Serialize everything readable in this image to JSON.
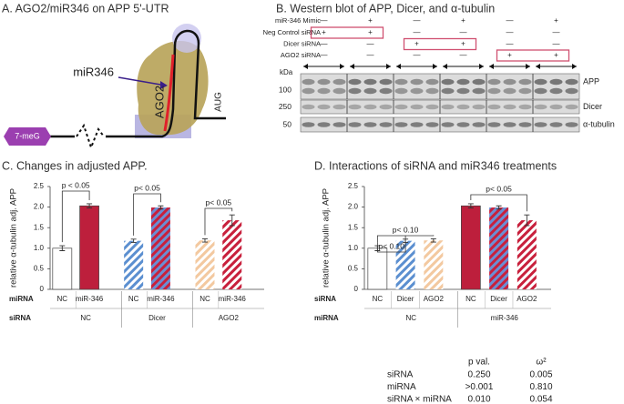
{
  "panel_a": {
    "title": "A. AGO2/miR346 on APP 5'-UTR",
    "mirna": "miR346",
    "ago2": "AGO2",
    "aug": "AUG",
    "cap": "7-meG"
  },
  "panel_b": {
    "title": "B. Western blot of APP, Dicer, and α-tubulin",
    "treatments": [
      {
        "label": "miR-346 Mimic",
        "signs": [
          "—",
          "+",
          "—",
          "+",
          "—",
          "+"
        ]
      },
      {
        "label": "Neg Control siRNA",
        "signs": [
          "+",
          "+",
          "—",
          "—",
          "—",
          "—"
        ]
      },
      {
        "label": "Dicer siRNA",
        "signs": [
          "—",
          "—",
          "+",
          "+",
          "—",
          "—"
        ]
      },
      {
        "label": "AGO2 siRNA",
        "signs": [
          "—",
          "—",
          "—",
          "—",
          "+",
          "+"
        ]
      }
    ],
    "kda": "kDa",
    "bands": [
      {
        "label": "APP",
        "kda": "100"
      },
      {
        "label": "Dicer",
        "kda": "250"
      },
      {
        "label": "α-tubulin",
        "kda": "50"
      }
    ]
  },
  "chart_data": [
    {
      "type": "bar",
      "title": "C. Changes in adjusted APP.",
      "y_label": "relative α-tubulin adj. APP",
      "categories": [
        "NC",
        "miR-346",
        "NC",
        "miR-346",
        "NC",
        "miR-346"
      ],
      "groups": [
        "NC",
        "Dicer",
        "AGO2"
      ],
      "row_labels": [
        "miRNA",
        "siRNA"
      ],
      "values": [
        1.0,
        2.03,
        1.18,
        1.99,
        1.19,
        1.68
      ],
      "errors": [
        0.06,
        0.05,
        0.04,
        0.04,
        0.04,
        0.13
      ],
      "colors": [
        "#ffffff",
        "#bd1f3c",
        "#ffffff",
        "#c8203c",
        "#ffffff",
        "#ffffff"
      ],
      "stripe_colors": [
        null,
        null,
        "#5b8fd0",
        "#6a8fd4",
        "#f3c9a0",
        "#c8203c"
      ],
      "ylim": [
        0,
        2.5
      ],
      "yticks": [
        0,
        0.5,
        {
          "value": 1,
          "label": "1.0"
        },
        1.5,
        {
          "value": 2,
          "label": "2.0"
        },
        2.5
      ],
      "annotations": [
        "p < 0.05",
        "p< 0.05",
        "p< 0.05"
      ]
    },
    {
      "type": "bar",
      "title": "D. Interactions of siRNA and miR346 treatments",
      "y_label": "relative α-tubulin adj. APP",
      "categories": [
        "NC",
        "Dicer",
        "AGO2",
        "NC",
        "Dicer",
        "AGO2"
      ],
      "groups": [
        "NC",
        "miR-346"
      ],
      "row_labels": [
        "siRNA",
        "miRNA"
      ],
      "values": [
        1.0,
        1.18,
        1.19,
        2.03,
        1.99,
        1.68
      ],
      "errors": [
        0.06,
        0.04,
        0.04,
        0.05,
        0.04,
        0.13
      ],
      "colors": [
        "#ffffff",
        "#ffffff",
        "#ffffff",
        "#bd1f3c",
        "#c8203c",
        "#ffffff"
      ],
      "stripe_colors": [
        null,
        "#5b8fd0",
        "#f3c9a0",
        null,
        "#6a8fd4",
        "#c8203c"
      ],
      "ylim": [
        0,
        2.5
      ],
      "yticks": [
        0,
        0.5,
        {
          "value": 1,
          "label": "1.0"
        },
        1.5,
        {
          "value": 2,
          "label": "2.0"
        },
        2.5
      ],
      "annotations": [
        "p< 0.10",
        "p< 0.10",
        "p< 0.05"
      ]
    }
  ],
  "stats_table": {
    "columns": [
      "p val.",
      "ω²"
    ],
    "rows": [
      {
        "label": "siRNA",
        "cells": [
          "0.250",
          "0.005"
        ]
      },
      {
        "label": "miRNA",
        "cells": [
          ">0.001",
          "0.810"
        ]
      },
      {
        "label": "siRNA × miRNA",
        "cells": [
          "0.010",
          "0.054"
        ]
      }
    ]
  }
}
